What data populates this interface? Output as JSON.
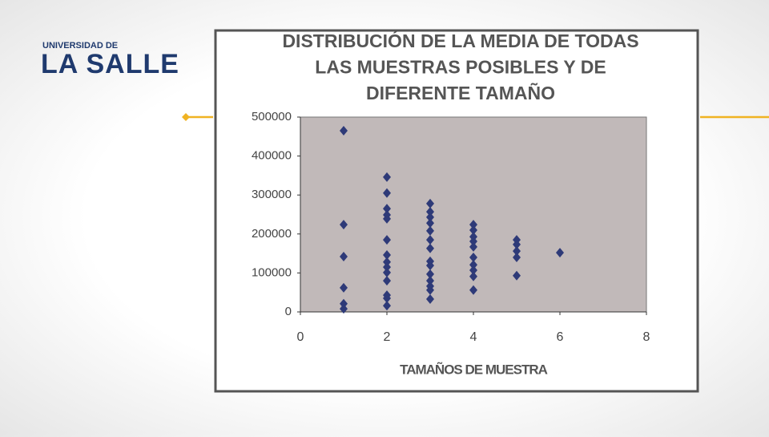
{
  "logo": {
    "top": "UNIVERSIDAD DE",
    "bottom": "LA SALLE"
  },
  "chart_data": {
    "type": "scatter",
    "title": [
      "DISTRIBUCIÓN DE LA MEDIA DE TODAS",
      "LAS MUESTRAS POSIBLES Y DE",
      "DIFERENTE TAMAÑO"
    ],
    "xlabel": "TAMAÑOS DE MUESTRA",
    "color": "#2e3a78",
    "x": [
      1,
      1,
      1,
      1,
      1,
      1,
      2,
      2,
      2,
      2,
      2,
      2,
      2,
      2,
      2,
      2,
      2,
      2,
      2,
      2,
      3,
      3,
      3,
      3,
      3,
      3,
      3,
      3,
      3,
      3,
      3,
      3,
      3,
      3,
      4,
      4,
      4,
      4,
      4,
      4,
      4,
      4,
      4,
      4,
      5,
      5,
      5,
      5,
      5,
      6
    ],
    "values": [
      465000,
      224000,
      142000,
      62000,
      21000,
      8000,
      346000,
      305000,
      265000,
      249000,
      239000,
      185000,
      146000,
      128000,
      115000,
      101000,
      80000,
      43000,
      35000,
      16000,
      278000,
      257000,
      243000,
      228000,
      208000,
      185000,
      163000,
      130000,
      119000,
      97000,
      80000,
      66000,
      56000,
      33000,
      224000,
      210000,
      193000,
      181000,
      167000,
      140000,
      121000,
      107000,
      91000,
      56000,
      185000,
      173000,
      156000,
      140000,
      93000,
      152000
    ],
    "xlim": [
      0,
      8
    ],
    "xticks": [
      0,
      2,
      4,
      6,
      8
    ],
    "ylim": [
      0,
      500000
    ],
    "yticks": [
      0,
      100000,
      200000,
      300000,
      400000,
      500000
    ]
  }
}
